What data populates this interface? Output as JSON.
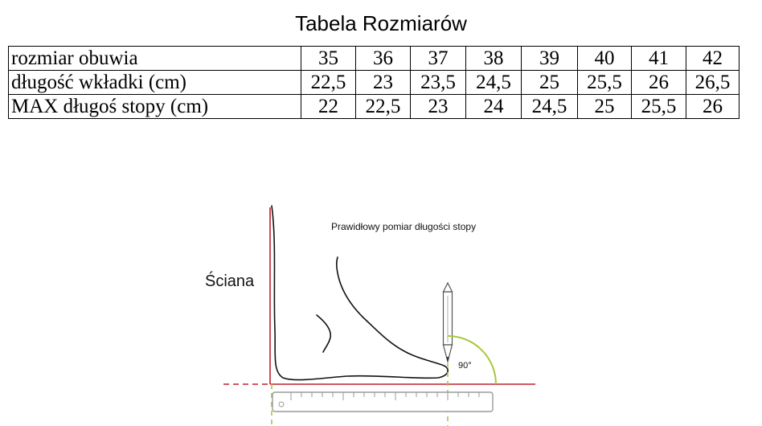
{
  "title": "Tabela Rozmiarów",
  "table": {
    "rows": [
      {
        "label": "rozmiar obuwia",
        "values": [
          "35",
          "36",
          "37",
          "38",
          "39",
          "40",
          "41",
          "42"
        ]
      },
      {
        "label": "długość wkładki (cm)",
        "values": [
          "22,5",
          "23",
          "23,5",
          "24,5",
          "25",
          "25,5",
          "26",
          "26,5"
        ]
      },
      {
        "label": "MAX długoś stopy (cm)",
        "values": [
          "22",
          "22,5",
          "23",
          "24",
          "24,5",
          "25",
          "25,5",
          "26"
        ]
      }
    ]
  },
  "diagram": {
    "caption": "Prawidłowy pomiar długości stopy",
    "wall_label": "Ściana",
    "angle_label": "90°",
    "colors": {
      "wall": "#c0202f",
      "guide": "#a6c83c",
      "ruler": "#9a9a9a"
    }
  }
}
